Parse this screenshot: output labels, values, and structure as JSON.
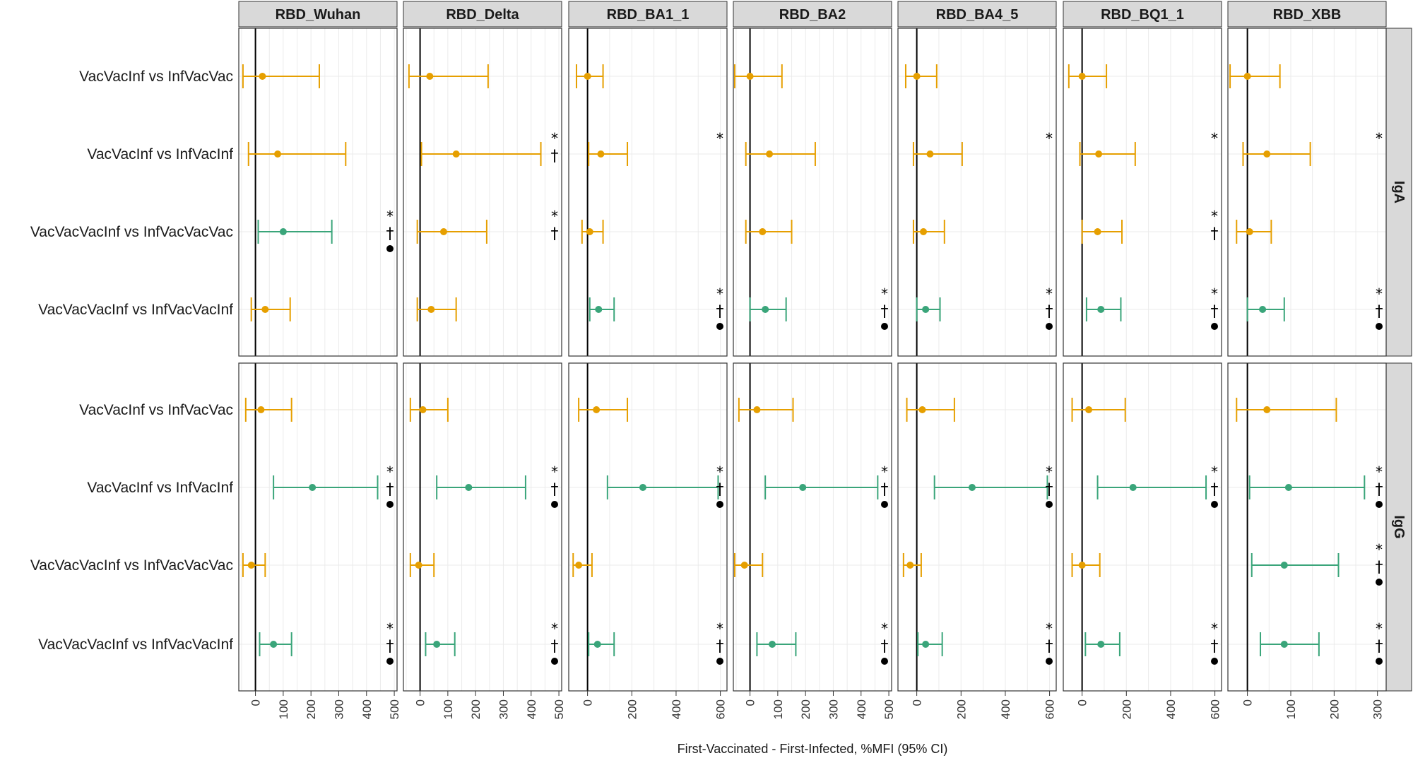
{
  "colors": {
    "nonsignificant": "#E69F00",
    "significant": "#3AA57A",
    "strip": "#D9D9D9",
    "grid": "#EBEBEB"
  },
  "chart_data": {
    "type": "forest",
    "xlabel": "First-Vaccinated - First-Infected, %MFI (95% CI)",
    "rows": [
      "VacVacInf vs InfVacVac",
      "VacVacInf vs InfVacInf",
      "VacVacVacInf vs InfVacVacVac",
      "VacVacVacInf vs InfVacVacInf"
    ],
    "panel_rows": [
      "IgA",
      "IgG"
    ],
    "legend_symbols": [
      "*",
      "†",
      "●"
    ],
    "columns": [
      {
        "name": "RBD_Wuhan",
        "xlim": [
          -60,
          510
        ],
        "ticks": [
          0,
          100,
          200,
          300,
          400,
          500
        ],
        "IgA": [
          {
            "est": 25,
            "lo": -45,
            "hi": 230,
            "sig": false,
            "marks": []
          },
          {
            "est": 80,
            "lo": -25,
            "hi": 325,
            "sig": false,
            "marks": []
          },
          {
            "est": 100,
            "lo": 10,
            "hi": 275,
            "sig": true,
            "marks": [
              "*",
              "†",
              "●"
            ]
          },
          {
            "est": 35,
            "lo": -15,
            "hi": 125,
            "sig": false,
            "marks": []
          }
        ],
        "IgG": [
          {
            "est": 20,
            "lo": -35,
            "hi": 130,
            "sig": false,
            "marks": []
          },
          {
            "est": 205,
            "lo": 65,
            "hi": 440,
            "sig": true,
            "marks": [
              "*",
              "†",
              "●"
            ]
          },
          {
            "est": -15,
            "lo": -45,
            "hi": 35,
            "sig": false,
            "marks": []
          },
          {
            "est": 65,
            "lo": 15,
            "hi": 130,
            "sig": true,
            "marks": [
              "*",
              "†",
              "●"
            ]
          }
        ]
      },
      {
        "name": "RBD_Delta",
        "xlim": [
          -60,
          510
        ],
        "ticks": [
          0,
          100,
          200,
          300,
          400,
          500
        ],
        "IgA": [
          {
            "est": 35,
            "lo": -40,
            "hi": 245,
            "sig": false,
            "marks": []
          },
          {
            "est": 130,
            "lo": 5,
            "hi": 435,
            "sig": false,
            "marks": [
              "*",
              "†"
            ]
          },
          {
            "est": 85,
            "lo": -10,
            "hi": 240,
            "sig": false,
            "marks": [
              "*",
              "†"
            ]
          },
          {
            "est": 40,
            "lo": -10,
            "hi": 130,
            "sig": false,
            "marks": []
          }
        ],
        "IgG": [
          {
            "est": 10,
            "lo": -35,
            "hi": 100,
            "sig": false,
            "marks": []
          },
          {
            "est": 175,
            "lo": 60,
            "hi": 380,
            "sig": true,
            "marks": [
              "*",
              "†",
              "●"
            ]
          },
          {
            "est": -5,
            "lo": -35,
            "hi": 50,
            "sig": false,
            "marks": []
          },
          {
            "est": 60,
            "lo": 20,
            "hi": 125,
            "sig": true,
            "marks": [
              "*",
              "†",
              "●"
            ]
          }
        ]
      },
      {
        "name": "RBD_BA1_1",
        "xlim": [
          -85,
          630
        ],
        "ticks": [
          0,
          200,
          400,
          600
        ],
        "IgA": [
          {
            "est": 0,
            "lo": -50,
            "hi": 70,
            "sig": false,
            "marks": []
          },
          {
            "est": 60,
            "lo": 5,
            "hi": 180,
            "sig": false,
            "marks": [
              "*"
            ]
          },
          {
            "est": 10,
            "lo": -25,
            "hi": 70,
            "sig": false,
            "marks": []
          },
          {
            "est": 50,
            "lo": 10,
            "hi": 120,
            "sig": true,
            "marks": [
              "*",
              "†",
              "●"
            ]
          }
        ],
        "IgG": [
          {
            "est": 40,
            "lo": -40,
            "hi": 180,
            "sig": false,
            "marks": []
          },
          {
            "est": 250,
            "lo": 90,
            "hi": 590,
            "sig": true,
            "marks": [
              "*",
              "†",
              "●"
            ]
          },
          {
            "est": -40,
            "lo": -65,
            "hi": 20,
            "sig": false,
            "marks": []
          },
          {
            "est": 45,
            "lo": 5,
            "hi": 120,
            "sig": true,
            "marks": [
              "*",
              "†",
              "●"
            ]
          }
        ]
      },
      {
        "name": "RBD_BA2",
        "xlim": [
          -60,
          510
        ],
        "ticks": [
          0,
          100,
          200,
          300,
          400,
          500
        ],
        "IgA": [
          {
            "est": 0,
            "lo": -55,
            "hi": 115,
            "sig": false,
            "marks": []
          },
          {
            "est": 70,
            "lo": -15,
            "hi": 235,
            "sig": false,
            "marks": []
          },
          {
            "est": 45,
            "lo": -15,
            "hi": 150,
            "sig": false,
            "marks": []
          },
          {
            "est": 55,
            "lo": 0,
            "hi": 130,
            "sig": true,
            "marks": [
              "*",
              "†",
              "●"
            ]
          }
        ],
        "IgG": [
          {
            "est": 25,
            "lo": -40,
            "hi": 155,
            "sig": false,
            "marks": []
          },
          {
            "est": 190,
            "lo": 55,
            "hi": 460,
            "sig": true,
            "marks": [
              "*",
              "†",
              "●"
            ]
          },
          {
            "est": -20,
            "lo": -55,
            "hi": 45,
            "sig": false,
            "marks": []
          },
          {
            "est": 80,
            "lo": 25,
            "hi": 165,
            "sig": true,
            "marks": [
              "*",
              "†",
              "●"
            ]
          }
        ]
      },
      {
        "name": "RBD_BA4_5",
        "xlim": [
          -85,
          630
        ],
        "ticks": [
          0,
          200,
          400,
          600
        ],
        "IgA": [
          {
            "est": 0,
            "lo": -50,
            "hi": 90,
            "sig": false,
            "marks": []
          },
          {
            "est": 60,
            "lo": -15,
            "hi": 205,
            "sig": false,
            "marks": [
              "*"
            ]
          },
          {
            "est": 30,
            "lo": -15,
            "hi": 125,
            "sig": false,
            "marks": []
          },
          {
            "est": 40,
            "lo": 0,
            "hi": 105,
            "sig": true,
            "marks": [
              "*",
              "†",
              "●"
            ]
          }
        ],
        "IgG": [
          {
            "est": 25,
            "lo": -45,
            "hi": 170,
            "sig": false,
            "marks": []
          },
          {
            "est": 250,
            "lo": 80,
            "hi": 590,
            "sig": true,
            "marks": [
              "*",
              "†",
              "●"
            ]
          },
          {
            "est": -30,
            "lo": -60,
            "hi": 20,
            "sig": false,
            "marks": []
          },
          {
            "est": 40,
            "lo": 5,
            "hi": 115,
            "sig": true,
            "marks": [
              "*",
              "†",
              "●"
            ]
          }
        ]
      },
      {
        "name": "RBD_BQ1_1",
        "xlim": [
          -85,
          630
        ],
        "ticks": [
          0,
          200,
          400,
          600
        ],
        "IgA": [
          {
            "est": 0,
            "lo": -60,
            "hi": 110,
            "sig": false,
            "marks": []
          },
          {
            "est": 75,
            "lo": -10,
            "hi": 240,
            "sig": false,
            "marks": [
              "*"
            ]
          },
          {
            "est": 70,
            "lo": 0,
            "hi": 180,
            "sig": false,
            "marks": [
              "*",
              "†"
            ]
          },
          {
            "est": 85,
            "lo": 20,
            "hi": 175,
            "sig": true,
            "marks": [
              "*",
              "†",
              "●"
            ]
          }
        ],
        "IgG": [
          {
            "est": 30,
            "lo": -45,
            "hi": 195,
            "sig": false,
            "marks": []
          },
          {
            "est": 230,
            "lo": 70,
            "hi": 560,
            "sig": true,
            "marks": [
              "*",
              "†",
              "●"
            ]
          },
          {
            "est": 0,
            "lo": -45,
            "hi": 80,
            "sig": false,
            "marks": []
          },
          {
            "est": 85,
            "lo": 15,
            "hi": 170,
            "sig": true,
            "marks": [
              "*",
              "†",
              "●"
            ]
          }
        ]
      },
      {
        "name": "RBD_XBB",
        "xlim": [
          -45,
          320
        ],
        "ticks": [
          0,
          100,
          200,
          300
        ],
        "IgA": [
          {
            "est": 0,
            "lo": -40,
            "hi": 75,
            "sig": false,
            "marks": []
          },
          {
            "est": 45,
            "lo": -10,
            "hi": 145,
            "sig": false,
            "marks": [
              "*"
            ]
          },
          {
            "est": 5,
            "lo": -25,
            "hi": 55,
            "sig": false,
            "marks": []
          },
          {
            "est": 35,
            "lo": 0,
            "hi": 85,
            "sig": true,
            "marks": [
              "*",
              "†",
              "●"
            ]
          }
        ],
        "IgG": [
          {
            "est": 45,
            "lo": -25,
            "hi": 205,
            "sig": false,
            "marks": []
          },
          {
            "est": 95,
            "lo": 5,
            "hi": 270,
            "sig": true,
            "marks": [
              "*",
              "†",
              "●"
            ]
          },
          {
            "est": 85,
            "lo": 10,
            "hi": 210,
            "sig": true,
            "marks": [
              "*",
              "†",
              "●"
            ]
          },
          {
            "est": 85,
            "lo": 30,
            "hi": 165,
            "sig": true,
            "marks": [
              "*",
              "†",
              "●"
            ]
          }
        ]
      }
    ]
  }
}
